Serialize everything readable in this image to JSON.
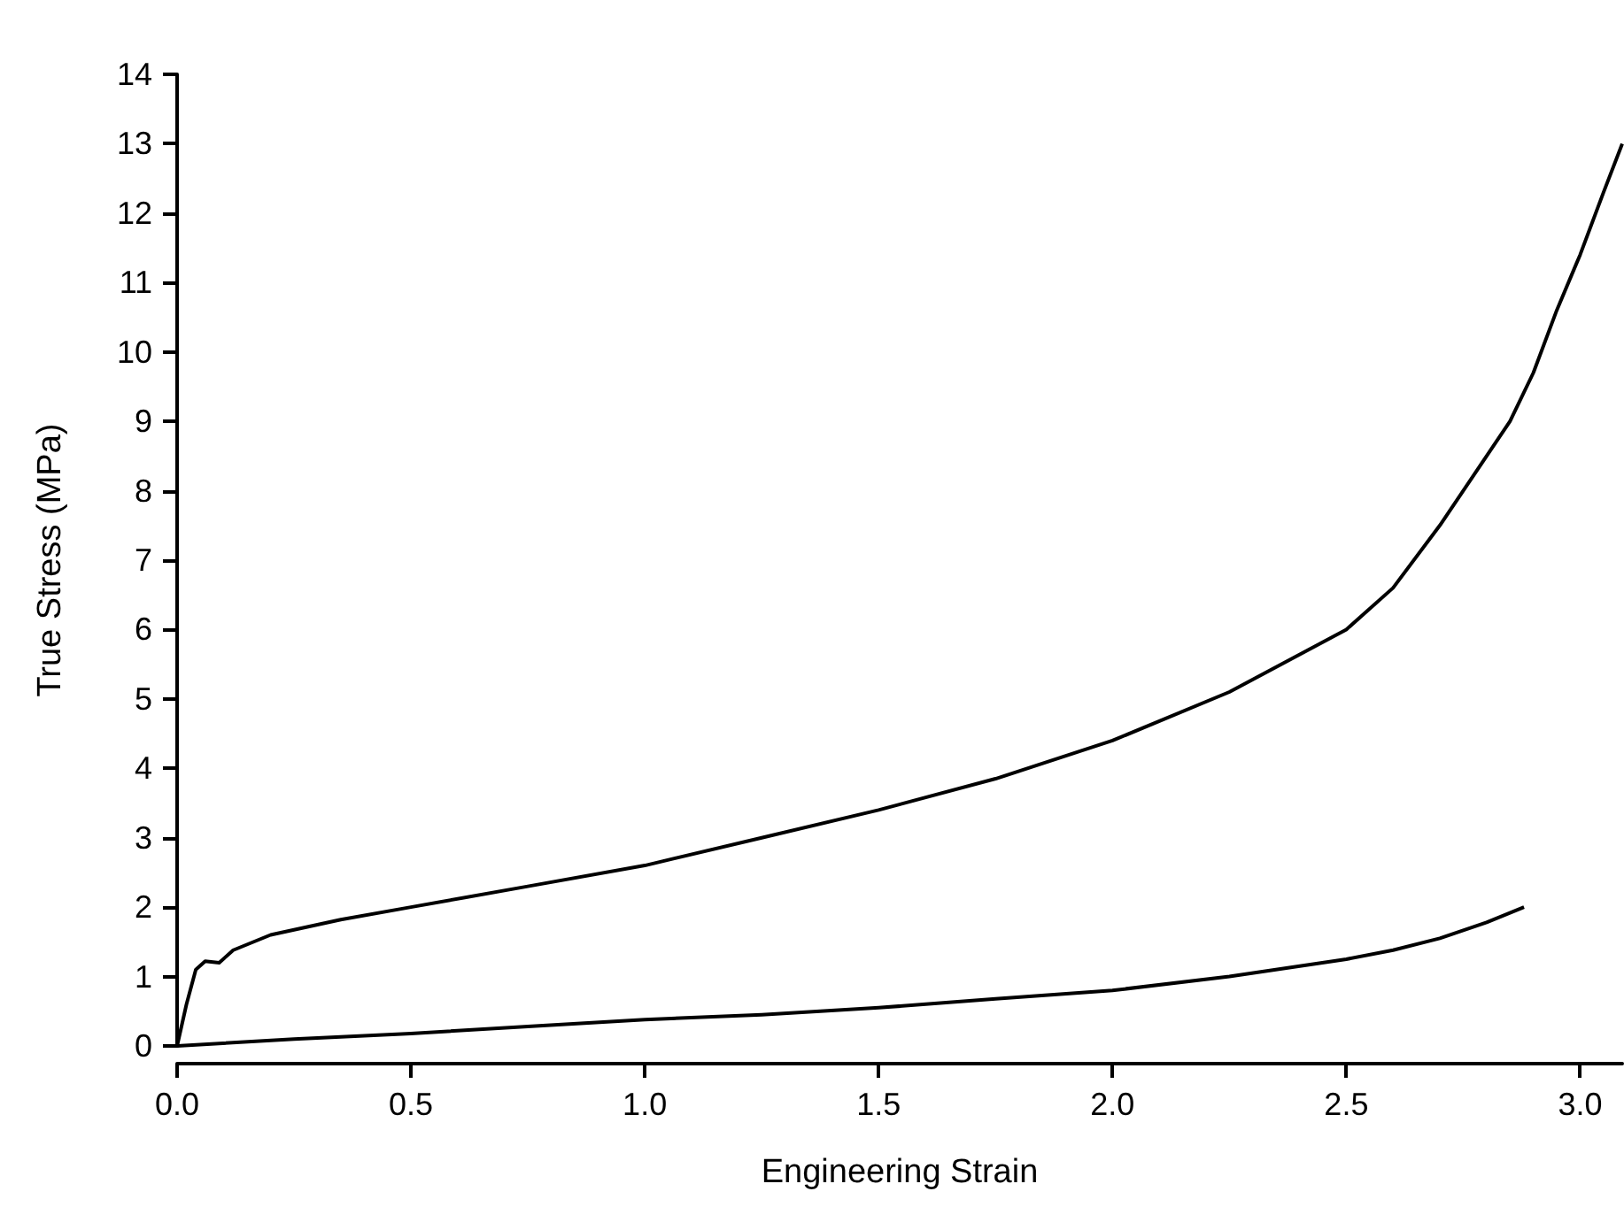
{
  "chart_data": {
    "type": "line",
    "xlabel": "Engineering Strain",
    "ylabel": "True Stress (MPa)",
    "xlim": [
      0,
      3.09
    ],
    "ylim": [
      0,
      14
    ],
    "xticks": [
      {
        "value": 0,
        "label": "0.0"
      },
      0.5,
      {
        "value": 1,
        "label": "1.0"
      },
      1.5,
      {
        "value": 2,
        "label": "2.0"
      },
      2.5,
      {
        "value": 3,
        "label": "3.0"
      }
    ],
    "yticks": [
      0,
      1,
      2,
      3,
      4,
      5,
      6,
      7,
      8,
      9,
      10,
      11,
      12,
      13,
      14
    ],
    "grid": false,
    "marker": "none",
    "line_style": "solid",
    "series": [
      {
        "color": "#000000",
        "x": [
          0,
          0.02,
          0.04,
          0.06,
          0.09,
          0.12,
          0.2,
          0.35,
          0.5,
          0.75,
          1.0,
          1.25,
          1.5,
          1.75,
          2.0,
          2.25,
          2.5,
          2.6,
          2.7,
          2.8,
          2.85,
          2.9,
          2.95,
          3.0,
          3.05,
          3.09
        ],
        "values": [
          0,
          0.6,
          1.1,
          1.22,
          1.2,
          1.38,
          1.6,
          1.82,
          2.0,
          2.3,
          2.6,
          3.0,
          3.4,
          3.85,
          4.4,
          5.1,
          6.0,
          6.6,
          7.5,
          8.5,
          9.0,
          9.7,
          10.6,
          11.4,
          12.3,
          13.0
        ]
      },
      {
        "color": "#000000",
        "x": [
          0,
          0.25,
          0.5,
          0.75,
          1.0,
          1.25,
          1.5,
          1.75,
          2.0,
          2.25,
          2.5,
          2.6,
          2.7,
          2.8,
          2.88
        ],
        "values": [
          0,
          0.1,
          0.18,
          0.28,
          0.38,
          0.45,
          0.55,
          0.68,
          0.8,
          1.0,
          1.25,
          1.38,
          1.55,
          1.78,
          2.0
        ]
      }
    ]
  }
}
